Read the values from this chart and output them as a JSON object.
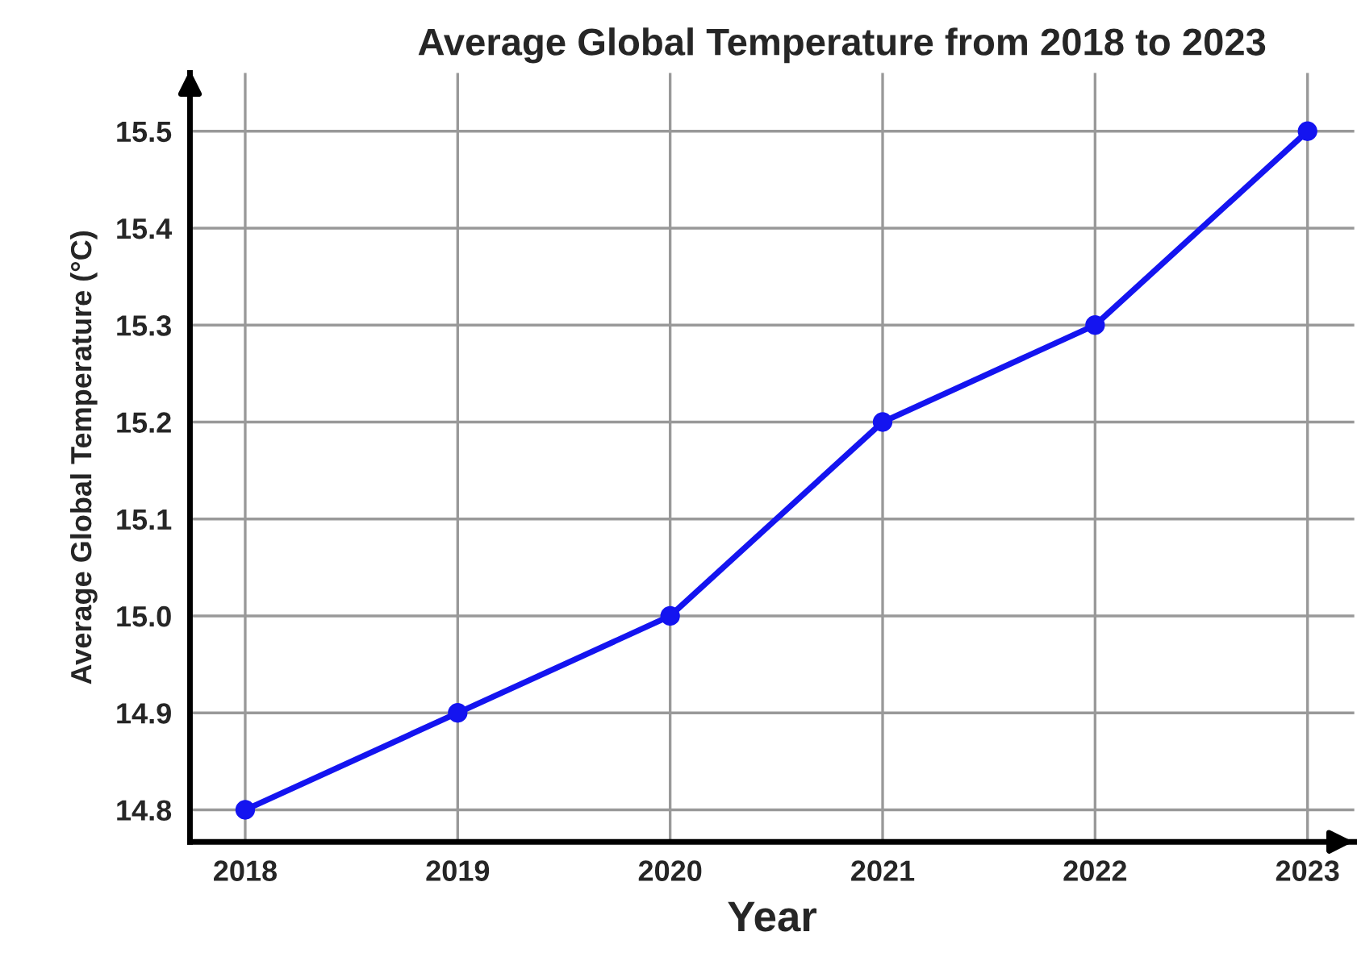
{
  "chart_data": {
    "type": "line",
    "title": "Average Global Temperature from 2018 to 2023",
    "xlabel": "Year",
    "ylabel": "Average Global Temperature (°C)",
    "x": [
      2018,
      2019,
      2020,
      2021,
      2022,
      2023
    ],
    "series": [
      {
        "color": "#1414f0",
        "values": [
          14.8,
          14.9,
          15.0,
          15.2,
          15.3,
          15.5
        ]
      }
    ],
    "xlim": [
      2017.74,
      2023.22
    ],
    "xticks": [
      2018,
      2019,
      2020,
      2021,
      2022,
      2023
    ],
    "ylim": [
      14.767,
      15.56
    ],
    "yticks": [
      {
        "value": 14.8,
        "label": "14.8"
      },
      {
        "value": 14.9,
        "label": "14.9"
      },
      {
        "value": 15.0,
        "label": "15.0"
      },
      {
        "value": 15.1,
        "label": "15.1"
      },
      {
        "value": 15.2,
        "label": "15.2"
      },
      {
        "value": 15.3,
        "label": "15.3"
      },
      {
        "value": 15.4,
        "label": "15.4"
      },
      {
        "value": 15.5,
        "label": "15.5"
      }
    ],
    "grid": true,
    "marker": "circle",
    "line_style": "solid",
    "legend": false
  }
}
